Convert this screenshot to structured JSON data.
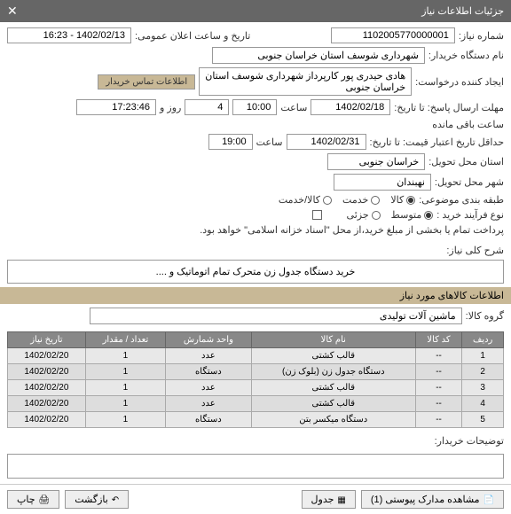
{
  "header": {
    "title": "جزئیات اطلاعات نیاز"
  },
  "fields": {
    "need_no_label": "شماره نیاز:",
    "need_no": "1102005770000001",
    "announce_label": "تاریخ و ساعت اعلان عمومی:",
    "announce": "1402/02/13 - 16:23",
    "buyer_label": "نام دستگاه خریدار:",
    "buyer": "شهرداری شوسف استان خراسان جنوبی",
    "creator_label": "ایجاد کننده درخواست:",
    "creator": "هادی حیدری پور کارپرداز شهرداری شوسف استان خراسان جنوبی",
    "contact_link": "اطلاعات تماس خریدار",
    "deadline_label": "مهلت ارسال پاسخ: تا تاریخ:",
    "deadline_date": "1402/02/18",
    "time_label": "ساعت",
    "deadline_time": "10:00",
    "days_label": "روز و",
    "days": "4",
    "remain_label": "ساعت باقی مانده",
    "remain": "17:23:46",
    "validity_label": "حداقل تاریخ اعتبار قیمت: تا تاریخ:",
    "validity_date": "1402/02/31",
    "validity_time": "19:00",
    "province_label": "استان محل تحویل:",
    "province": "خراسان جنوبی",
    "city_label": "شهر محل تحویل:",
    "city": "نهبندان",
    "category_label": "طبقه بندی موضوعی:",
    "buy_type_label": "نوع فرآیند خرید :"
  },
  "category_opts": [
    {
      "label": "کالا",
      "checked": true
    },
    {
      "label": "خدمت",
      "checked": false
    },
    {
      "label": "کالا/خدمت",
      "checked": false
    }
  ],
  "buy_type_opts": [
    {
      "label": "متوسط",
      "checked": true
    },
    {
      "label": "جزئی",
      "checked": false
    }
  ],
  "payment_note": "پرداخت تمام یا بخشی از مبلغ خرید،از محل \"اسناد خزانه اسلامی\" خواهد بود.",
  "desc": {
    "label": "شرح کلی نیاز:",
    "text": "خرید دستگاه جدول زن متحرک تمام اتوماتیک  و ...."
  },
  "goods_section": "اطلاعات کالاهای مورد نیاز",
  "group_label": "گروه کالا:",
  "group_value": "ماشین آلات تولیدی",
  "table": {
    "headers": [
      "ردیف",
      "کد کالا",
      "نام کالا",
      "واحد شمارش",
      "تعداد / مقدار",
      "تاریخ نیاز"
    ],
    "rows": [
      [
        "1",
        "--",
        "قالب کشتی",
        "عدد",
        "1",
        "1402/02/20"
      ],
      [
        "2",
        "--",
        "دستگاه جدول زن (بلوک زن)",
        "دستگاه",
        "1",
        "1402/02/20"
      ],
      [
        "3",
        "--",
        "قالب کشتی",
        "عدد",
        "1",
        "1402/02/20"
      ],
      [
        "4",
        "--",
        "قالب کشتی",
        "عدد",
        "1",
        "1402/02/20"
      ],
      [
        "5",
        "--",
        "دستگاه میکسر بتن",
        "دستگاه",
        "1",
        "1402/02/20"
      ]
    ]
  },
  "notes_label": "توضیحات خریدار:",
  "footer": {
    "attach": "مشاهده مدارک پیوستی (1)",
    "table_btn": "جدول",
    "back": "بازگشت",
    "print": "چاپ"
  }
}
